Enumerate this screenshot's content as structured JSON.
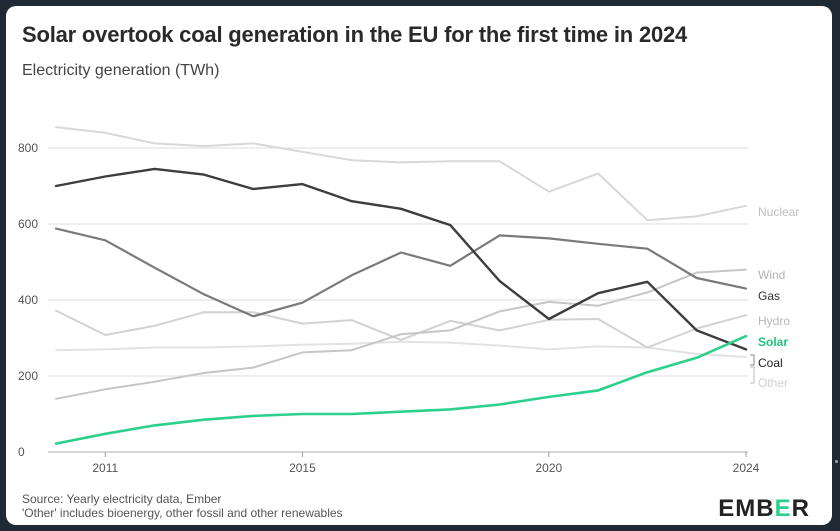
{
  "header": {
    "title": "Solar overtook coal generation in the EU for the first time in 2024",
    "subtitle": "Electricity generation (TWh)"
  },
  "footer": {
    "source_line1": "Source: Yearly electricity data, Ember",
    "source_line2": "'Other' includes bioenergy, other fossil and other renewables"
  },
  "logo": {
    "pre": "EMB",
    "accent": "E",
    "post": "R"
  },
  "colors": {
    "background": "#1f2a35",
    "card": "#ffffff",
    "grid": "#e3e3e3",
    "solar": "#2bd08c",
    "coal": "#3d3d3d",
    "gas": "#7a7a7a",
    "wind": "#c6c6c6",
    "hydro": "#d2d2d2",
    "nuclear": "#d8d8d8",
    "other": "#e2e2e2"
  },
  "chart_data": {
    "type": "line",
    "title": "Solar overtook coal generation in the EU for the first time in 2024",
    "subtitle": "Electricity generation (TWh)",
    "x": [
      2010,
      2011,
      2012,
      2013,
      2014,
      2015,
      2016,
      2017,
      2018,
      2019,
      2020,
      2021,
      2022,
      2023,
      2024
    ],
    "xticks": [
      2011,
      2015,
      2020,
      2024
    ],
    "yticks": [
      0,
      200,
      400,
      600,
      800
    ],
    "xlim": [
      2010,
      2024
    ],
    "ylim": [
      0,
      900
    ],
    "grid": true,
    "series": [
      {
        "name": "Nuclear",
        "key": "nuclear",
        "values": [
          855,
          840,
          812,
          805,
          812,
          790,
          768,
          762,
          765,
          765,
          685,
          733,
          610,
          620,
          648
        ]
      },
      {
        "name": "Other",
        "key": "other",
        "values": [
          268,
          270,
          275,
          275,
          278,
          282,
          285,
          290,
          288,
          280,
          270,
          278,
          275,
          258,
          250
        ]
      },
      {
        "name": "Hydro",
        "key": "hydro",
        "values": [
          372,
          308,
          332,
          368,
          368,
          338,
          347,
          295,
          345,
          320,
          348,
          350,
          275,
          325,
          360
        ]
      },
      {
        "name": "Wind",
        "key": "wind",
        "values": [
          140,
          165,
          185,
          208,
          222,
          262,
          268,
          310,
          320,
          370,
          395,
          385,
          420,
          472,
          480
        ]
      },
      {
        "name": "Gas",
        "key": "gas",
        "values": [
          588,
          557,
          485,
          415,
          357,
          393,
          465,
          525,
          490,
          570,
          562,
          548,
          535,
          458,
          430
        ]
      },
      {
        "name": "Coal",
        "key": "coal",
        "values": [
          700,
          725,
          745,
          730,
          692,
          705,
          660,
          640,
          597,
          450,
          350,
          418,
          448,
          320,
          270
        ]
      },
      {
        "name": "Solar",
        "key": "solar",
        "values": [
          22,
          48,
          70,
          85,
          95,
          100,
          100,
          106,
          112,
          125,
          145,
          162,
          210,
          248,
          305
        ]
      }
    ]
  }
}
